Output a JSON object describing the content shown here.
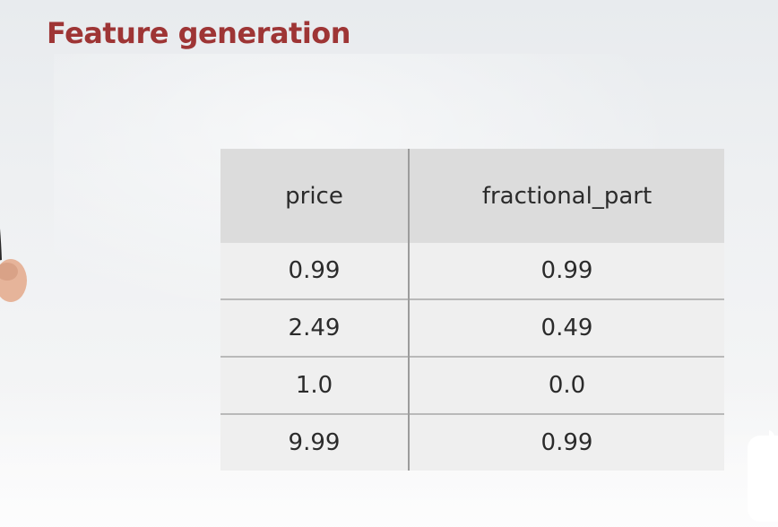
{
  "slide": {
    "title": "Feature generation"
  },
  "table": {
    "columns": [
      "price",
      "fractional_part"
    ],
    "rows": [
      [
        "0.99",
        "0.99"
      ],
      [
        "2.49",
        "0.49"
      ],
      [
        "1.0",
        "0.0"
      ],
      [
        "9.99",
        "0.99"
      ]
    ]
  },
  "colors": {
    "title": "#9e3535",
    "header_bg": "#dcdcdc",
    "cell_bg": "#efefef",
    "text": "#2b2b2b"
  },
  "icons": {
    "presenter": "presenter-figure",
    "corner": "app-corner-icon"
  }
}
